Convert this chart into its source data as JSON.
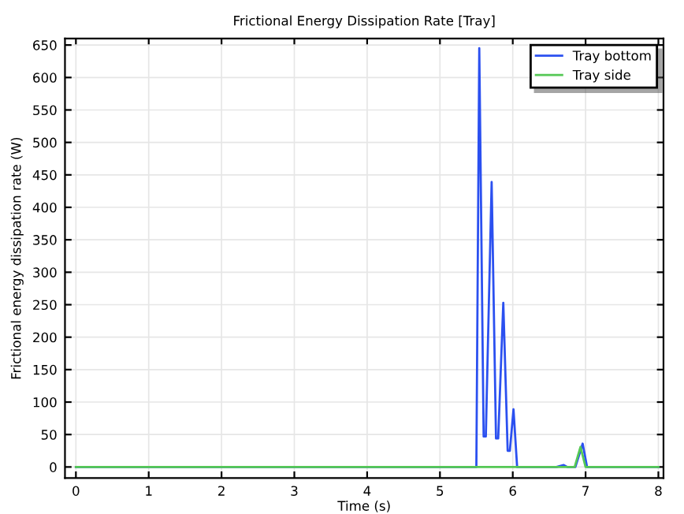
{
  "chart_data": {
    "type": "line",
    "title": "Frictional Energy Dissipation Rate [Tray]",
    "xlabel": "Time (s)",
    "ylabel": "Frictional energy dissipation rate (W)",
    "xlim": [
      -0.15,
      8.07
    ],
    "ylim": [
      -17,
      660
    ],
    "xticks": [
      0,
      1,
      2,
      3,
      4,
      5,
      6,
      7,
      8
    ],
    "yticks": [
      0,
      50,
      100,
      150,
      200,
      250,
      300,
      350,
      400,
      450,
      500,
      550,
      600,
      650
    ],
    "grid": true,
    "legend": "top right",
    "series": [
      {
        "name": "Tray bottom",
        "color": "#2b50f0",
        "x": [
          0,
          5.49,
          5.5,
          5.54,
          5.6,
          5.63,
          5.71,
          5.77,
          5.8,
          5.87,
          5.93,
          5.96,
          6.01,
          6.06,
          6.08,
          6.6,
          6.7,
          6.75,
          6.86,
          6.96,
          7.02,
          8.0
        ],
        "values": [
          0,
          0,
          0,
          645,
          47,
          47,
          439,
          44,
          44,
          253,
          25,
          25,
          89,
          0,
          0,
          0,
          3,
          0,
          0,
          36,
          0,
          0
        ]
      },
      {
        "name": "Tray side",
        "color": "#55c855",
        "x": [
          0,
          6.85,
          6.93,
          7.0,
          8.0
        ],
        "values": [
          0,
          0,
          31,
          0,
          0
        ]
      }
    ]
  }
}
